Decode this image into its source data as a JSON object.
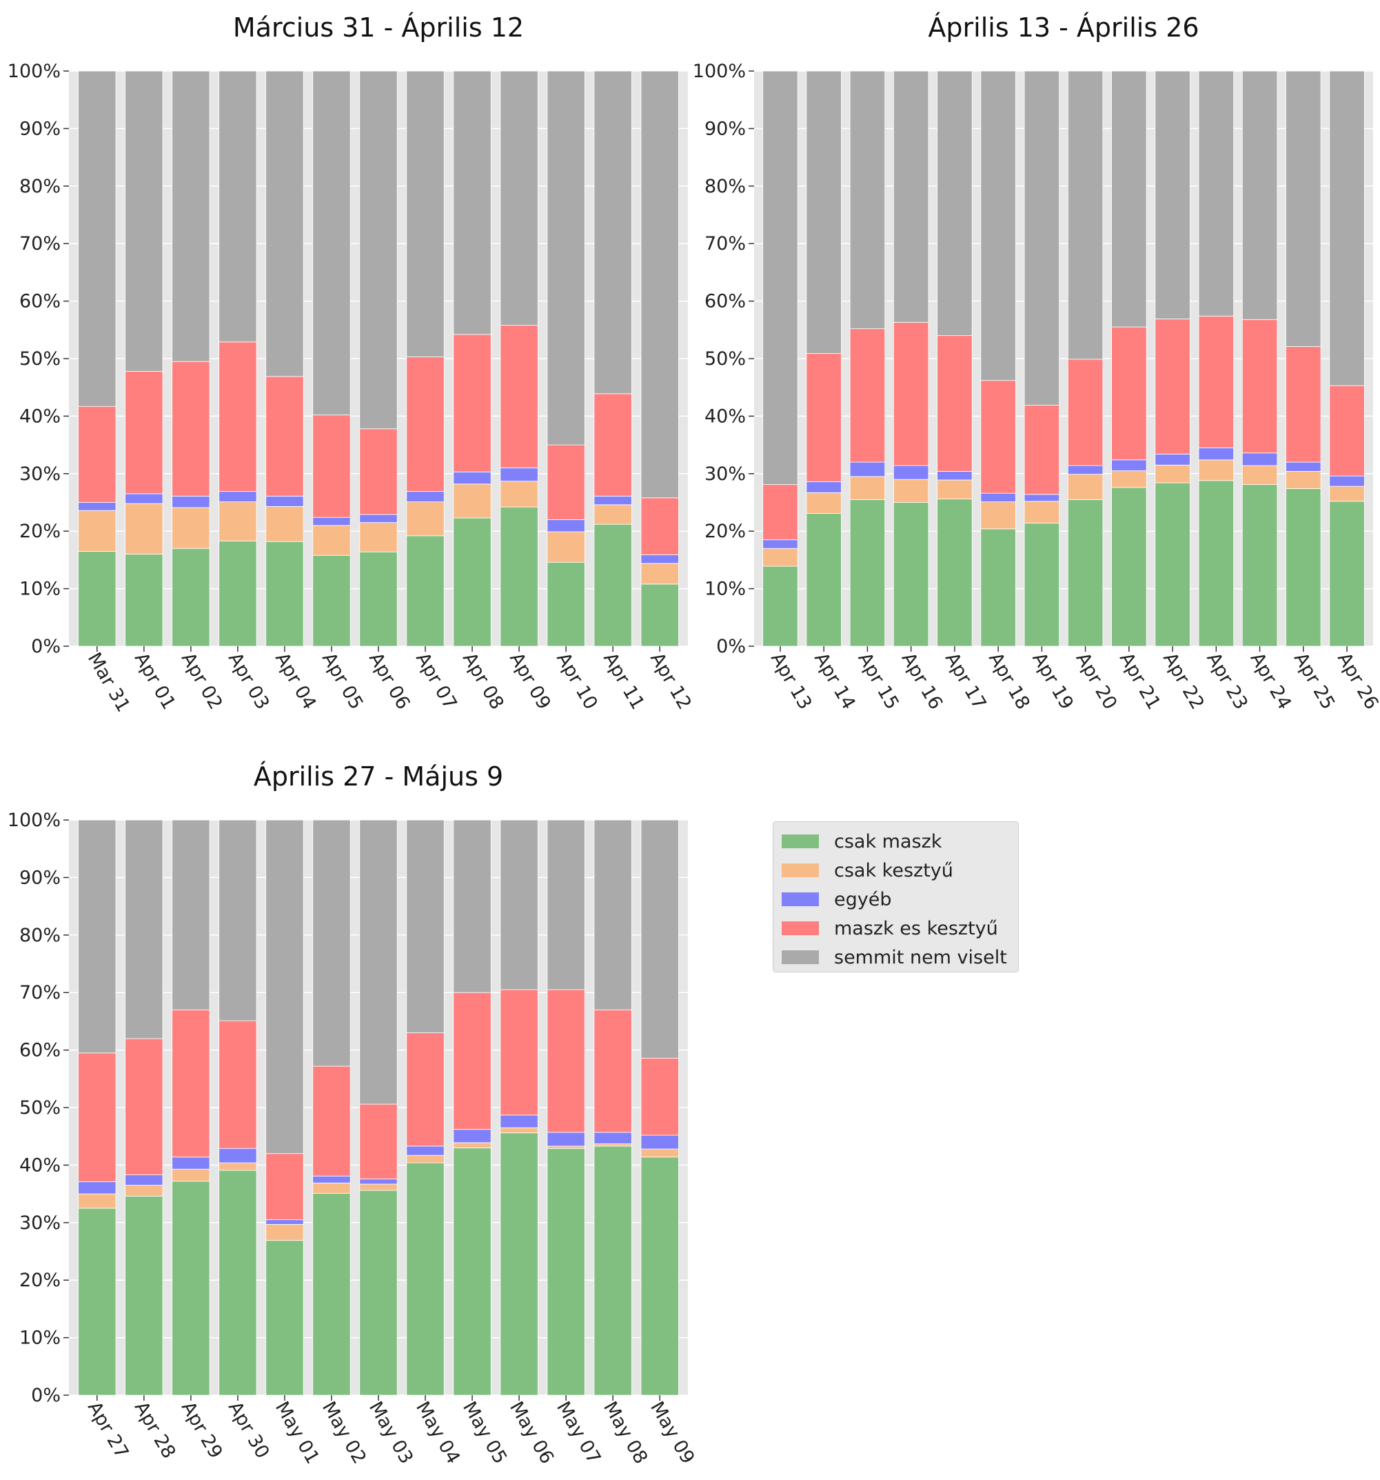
{
  "chart_data": [
    {
      "type": "bar",
      "stacked": true,
      "title": "Március 31 - Április 12",
      "xlabel": "",
      "ylabel": "",
      "ylim": [
        0,
        100
      ],
      "y_ticks": [
        "0%",
        "10%",
        "20%",
        "30%",
        "40%",
        "50%",
        "60%",
        "70%",
        "80%",
        "90%",
        "100%"
      ],
      "grid": true,
      "categories": [
        "Mar 31",
        "Apr 01",
        "Apr 02",
        "Apr 03",
        "Apr 04",
        "Apr 05",
        "Apr 06",
        "Apr 07",
        "Apr 08",
        "Apr 09",
        "Apr 10",
        "Apr 11",
        "Apr 12"
      ],
      "series": [
        {
          "name": "csak maszk",
          "values": [
            16.5,
            16.0,
            17.0,
            18.3,
            18.2,
            15.8,
            16.4,
            19.2,
            22.3,
            24.2,
            14.6,
            21.2,
            10.8
          ]
        },
        {
          "name": "csak kesztyű",
          "values": [
            7.1,
            8.8,
            7.1,
            6.8,
            6.1,
            5.2,
            5.1,
            5.9,
            5.9,
            4.5,
            5.3,
            3.4,
            3.6
          ]
        },
        {
          "name": "egyéb",
          "values": [
            1.4,
            1.7,
            2.0,
            1.8,
            1.8,
            1.4,
            1.4,
            1.8,
            2.1,
            2.3,
            2.1,
            1.5,
            1.5
          ]
        },
        {
          "name": "maszk es kesztyű",
          "values": [
            16.7,
            21.3,
            23.4,
            26.0,
            20.8,
            17.8,
            14.9,
            23.4,
            23.9,
            24.8,
            13.0,
            17.8,
            9.9
          ]
        },
        {
          "name": "semmit nem viselt",
          "values": [
            58.3,
            52.2,
            50.5,
            47.1,
            53.1,
            59.8,
            62.2,
            49.7,
            45.8,
            44.2,
            65.0,
            56.1,
            74.2
          ]
        }
      ]
    },
    {
      "type": "bar",
      "stacked": true,
      "title": "Április 13 - Április 26",
      "xlabel": "",
      "ylabel": "",
      "ylim": [
        0,
        100
      ],
      "y_ticks": [
        "0%",
        "10%",
        "20%",
        "30%",
        "40%",
        "50%",
        "60%",
        "70%",
        "80%",
        "90%",
        "100%"
      ],
      "grid": true,
      "categories": [
        "Apr 13",
        "Apr 14",
        "Apr 15",
        "Apr 16",
        "Apr 17",
        "Apr 18",
        "Apr 19",
        "Apr 20",
        "Apr 21",
        "Apr 22",
        "Apr 23",
        "Apr 24",
        "Apr 25",
        "Apr 26"
      ],
      "series": [
        {
          "name": "csak maszk",
          "values": [
            13.9,
            23.1,
            25.5,
            25.0,
            25.6,
            20.4,
            21.4,
            25.5,
            27.6,
            28.4,
            28.8,
            28.1,
            27.4,
            25.2
          ]
        },
        {
          "name": "csak kesztyű",
          "values": [
            3.1,
            3.6,
            4.0,
            4.0,
            3.3,
            4.7,
            3.8,
            4.4,
            2.9,
            3.1,
            3.6,
            3.3,
            3.0,
            2.6
          ]
        },
        {
          "name": "egyéb",
          "values": [
            1.5,
            1.9,
            2.5,
            2.4,
            1.5,
            1.5,
            1.2,
            1.5,
            1.9,
            1.9,
            2.1,
            2.2,
            1.6,
            1.8
          ]
        },
        {
          "name": "maszk es kesztyű",
          "values": [
            9.6,
            22.3,
            23.2,
            24.9,
            23.6,
            19.6,
            15.5,
            18.5,
            23.1,
            23.5,
            22.9,
            23.2,
            20.1,
            15.7
          ]
        },
        {
          "name": "semmit nem viselt",
          "values": [
            71.9,
            49.1,
            44.8,
            43.7,
            46.0,
            53.8,
            58.1,
            50.1,
            44.5,
            43.1,
            42.6,
            43.2,
            47.9,
            54.7
          ]
        }
      ]
    },
    {
      "type": "bar",
      "stacked": true,
      "title": "Április 27 - Május 9",
      "xlabel": "",
      "ylabel": "",
      "ylim": [
        0,
        100
      ],
      "y_ticks": [
        "0%",
        "10%",
        "20%",
        "30%",
        "40%",
        "50%",
        "60%",
        "70%",
        "80%",
        "90%",
        "100%"
      ],
      "grid": true,
      "categories": [
        "Apr 27",
        "Apr 28",
        "Apr 29",
        "Apr 30",
        "May 01",
        "May 02",
        "May 03",
        "May 04",
        "May 05",
        "May 06",
        "May 07",
        "May 08",
        "May 09"
      ],
      "series": [
        {
          "name": "csak maszk",
          "values": [
            32.5,
            34.6,
            37.2,
            39.1,
            26.9,
            35.1,
            35.6,
            40.4,
            43.0,
            45.6,
            42.9,
            43.3,
            41.4
          ]
        },
        {
          "name": "csak kesztyű",
          "values": [
            2.5,
            1.9,
            2.1,
            1.3,
            2.8,
            1.8,
            1.1,
            1.3,
            0.9,
            0.9,
            0.4,
            0.4,
            1.4
          ]
        },
        {
          "name": "egyéb",
          "values": [
            2.1,
            1.8,
            2.1,
            2.5,
            0.8,
            1.2,
            0.9,
            1.6,
            2.3,
            2.2,
            2.4,
            2.0,
            2.4
          ]
        },
        {
          "name": "maszk es kesztyű",
          "values": [
            22.4,
            23.7,
            25.6,
            22.2,
            11.5,
            19.1,
            13.0,
            19.7,
            23.8,
            21.8,
            24.8,
            21.3,
            13.4
          ]
        },
        {
          "name": "semmit nem viselt",
          "values": [
            40.5,
            38.0,
            33.0,
            34.9,
            58.0,
            42.8,
            49.4,
            37.0,
            30.0,
            29.5,
            29.5,
            33.0,
            41.4
          ]
        }
      ]
    }
  ],
  "legend": {
    "placement": "right of third chart",
    "items": [
      {
        "label": "csak maszk",
        "color": "#80bf80"
      },
      {
        "label": "csak kesztyű",
        "color": "#f8bb88"
      },
      {
        "label": "egyéb",
        "color": "#8080fa"
      },
      {
        "label": "maszk es kesztyű",
        "color": "#ff7f7f"
      },
      {
        "label": "semmit nem viselt",
        "color": "#aaaaaa"
      }
    ]
  },
  "colors": {
    "csak maszk": "#80bf80",
    "csak kesztyű": "#f8bb88",
    "egyéb": "#8080fa",
    "maszk es kesztyű": "#ff7f7f",
    "semmit nem viselt": "#aaaaaa",
    "plot_background": "#e6e6e6",
    "grid": "#ffffff"
  }
}
